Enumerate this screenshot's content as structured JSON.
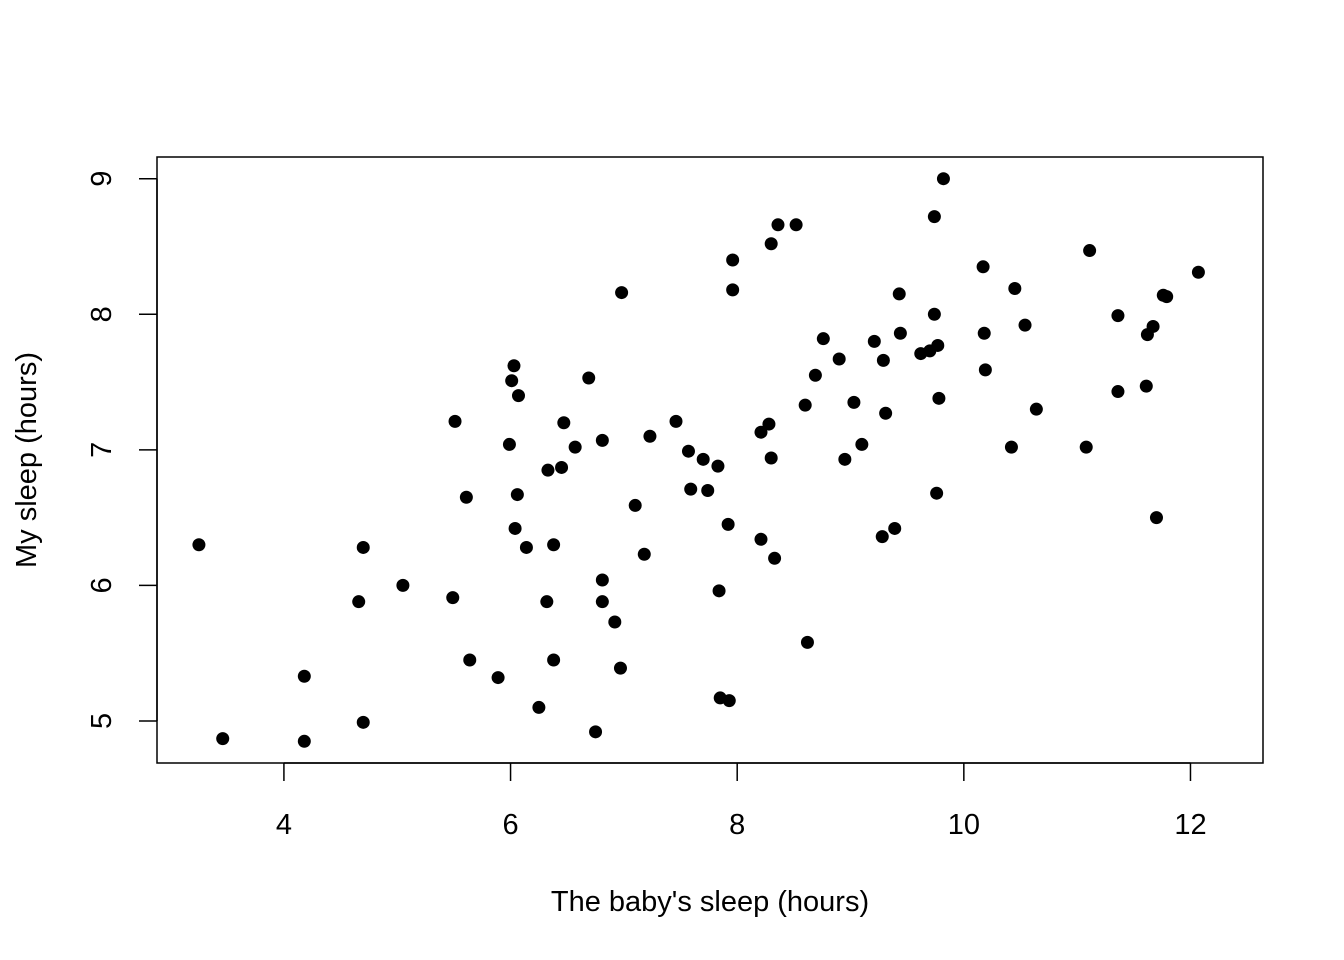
{
  "chart_data": {
    "type": "scatter",
    "title": "",
    "xlabel": "The baby's sleep (hours)",
    "ylabel": "My sleep (hours)",
    "xlim": [
      2.88,
      12.64
    ],
    "ylim": [
      4.69,
      9.16
    ],
    "xticks": [
      4,
      6,
      8,
      10,
      12
    ],
    "yticks": [
      5,
      6,
      7,
      8,
      9
    ],
    "grid": false,
    "legend": "none",
    "marker_color": "#000000",
    "points": [
      [
        3.25,
        6.3
      ],
      [
        3.46,
        4.87
      ],
      [
        4.18,
        5.33
      ],
      [
        4.18,
        4.85
      ],
      [
        4.66,
        5.88
      ],
      [
        4.7,
        6.28
      ],
      [
        4.7,
        4.99
      ],
      [
        5.05,
        6.0
      ],
      [
        5.49,
        5.91
      ],
      [
        5.51,
        7.21
      ],
      [
        5.61,
        6.65
      ],
      [
        5.64,
        5.45
      ],
      [
        5.89,
        5.32
      ],
      [
        5.99,
        7.04
      ],
      [
        6.01,
        7.51
      ],
      [
        6.03,
        7.62
      ],
      [
        6.04,
        6.42
      ],
      [
        6.06,
        6.67
      ],
      [
        6.07,
        7.4
      ],
      [
        6.14,
        6.28
      ],
      [
        6.25,
        5.1
      ],
      [
        6.32,
        5.88
      ],
      [
        6.33,
        6.85
      ],
      [
        6.38,
        6.3
      ],
      [
        6.38,
        5.45
      ],
      [
        6.45,
        6.87
      ],
      [
        6.47,
        7.2
      ],
      [
        6.57,
        7.02
      ],
      [
        6.69,
        7.53
      ],
      [
        6.75,
        4.92
      ],
      [
        6.81,
        7.07
      ],
      [
        6.81,
        6.04
      ],
      [
        6.81,
        5.88
      ],
      [
        6.92,
        5.73
      ],
      [
        6.97,
        5.39
      ],
      [
        6.98,
        8.16
      ],
      [
        7.1,
        6.59
      ],
      [
        7.18,
        6.23
      ],
      [
        7.23,
        7.1
      ],
      [
        7.46,
        7.21
      ],
      [
        7.57,
        6.99
      ],
      [
        7.59,
        6.71
      ],
      [
        7.7,
        6.93
      ],
      [
        7.74,
        6.7
      ],
      [
        7.83,
        6.88
      ],
      [
        7.84,
        5.96
      ],
      [
        7.85,
        5.17
      ],
      [
        7.92,
        6.45
      ],
      [
        7.93,
        5.15
      ],
      [
        7.96,
        8.4
      ],
      [
        7.96,
        8.18
      ],
      [
        8.21,
        6.34
      ],
      [
        8.21,
        7.13
      ],
      [
        8.28,
        7.19
      ],
      [
        8.3,
        6.94
      ],
      [
        8.3,
        8.52
      ],
      [
        8.33,
        6.2
      ],
      [
        8.36,
        8.66
      ],
      [
        8.52,
        8.66
      ],
      [
        8.6,
        7.33
      ],
      [
        8.62,
        5.58
      ],
      [
        8.69,
        7.55
      ],
      [
        8.76,
        7.82
      ],
      [
        8.9,
        7.67
      ],
      [
        8.95,
        6.93
      ],
      [
        9.03,
        7.35
      ],
      [
        9.1,
        7.04
      ],
      [
        9.21,
        7.8
      ],
      [
        9.28,
        6.36
      ],
      [
        9.29,
        7.66
      ],
      [
        9.31,
        7.27
      ],
      [
        9.39,
        6.42
      ],
      [
        9.43,
        8.15
      ],
      [
        9.44,
        7.86
      ],
      [
        9.62,
        7.71
      ],
      [
        9.7,
        7.73
      ],
      [
        9.74,
        8.0
      ],
      [
        9.74,
        8.72
      ],
      [
        9.76,
        6.68
      ],
      [
        9.77,
        7.77
      ],
      [
        9.78,
        7.38
      ],
      [
        9.82,
        9.0
      ],
      [
        10.17,
        8.35
      ],
      [
        10.18,
        7.86
      ],
      [
        10.19,
        7.59
      ],
      [
        10.42,
        7.02
      ],
      [
        10.45,
        8.19
      ],
      [
        10.54,
        7.92
      ],
      [
        10.64,
        7.3
      ],
      [
        11.08,
        7.02
      ],
      [
        11.11,
        8.47
      ],
      [
        11.36,
        7.99
      ],
      [
        11.36,
        7.43
      ],
      [
        11.61,
        7.47
      ],
      [
        11.62,
        7.85
      ],
      [
        11.67,
        7.91
      ],
      [
        11.7,
        6.5
      ],
      [
        11.76,
        8.14
      ],
      [
        11.79,
        8.13
      ],
      [
        12.07,
        8.31
      ]
    ]
  }
}
